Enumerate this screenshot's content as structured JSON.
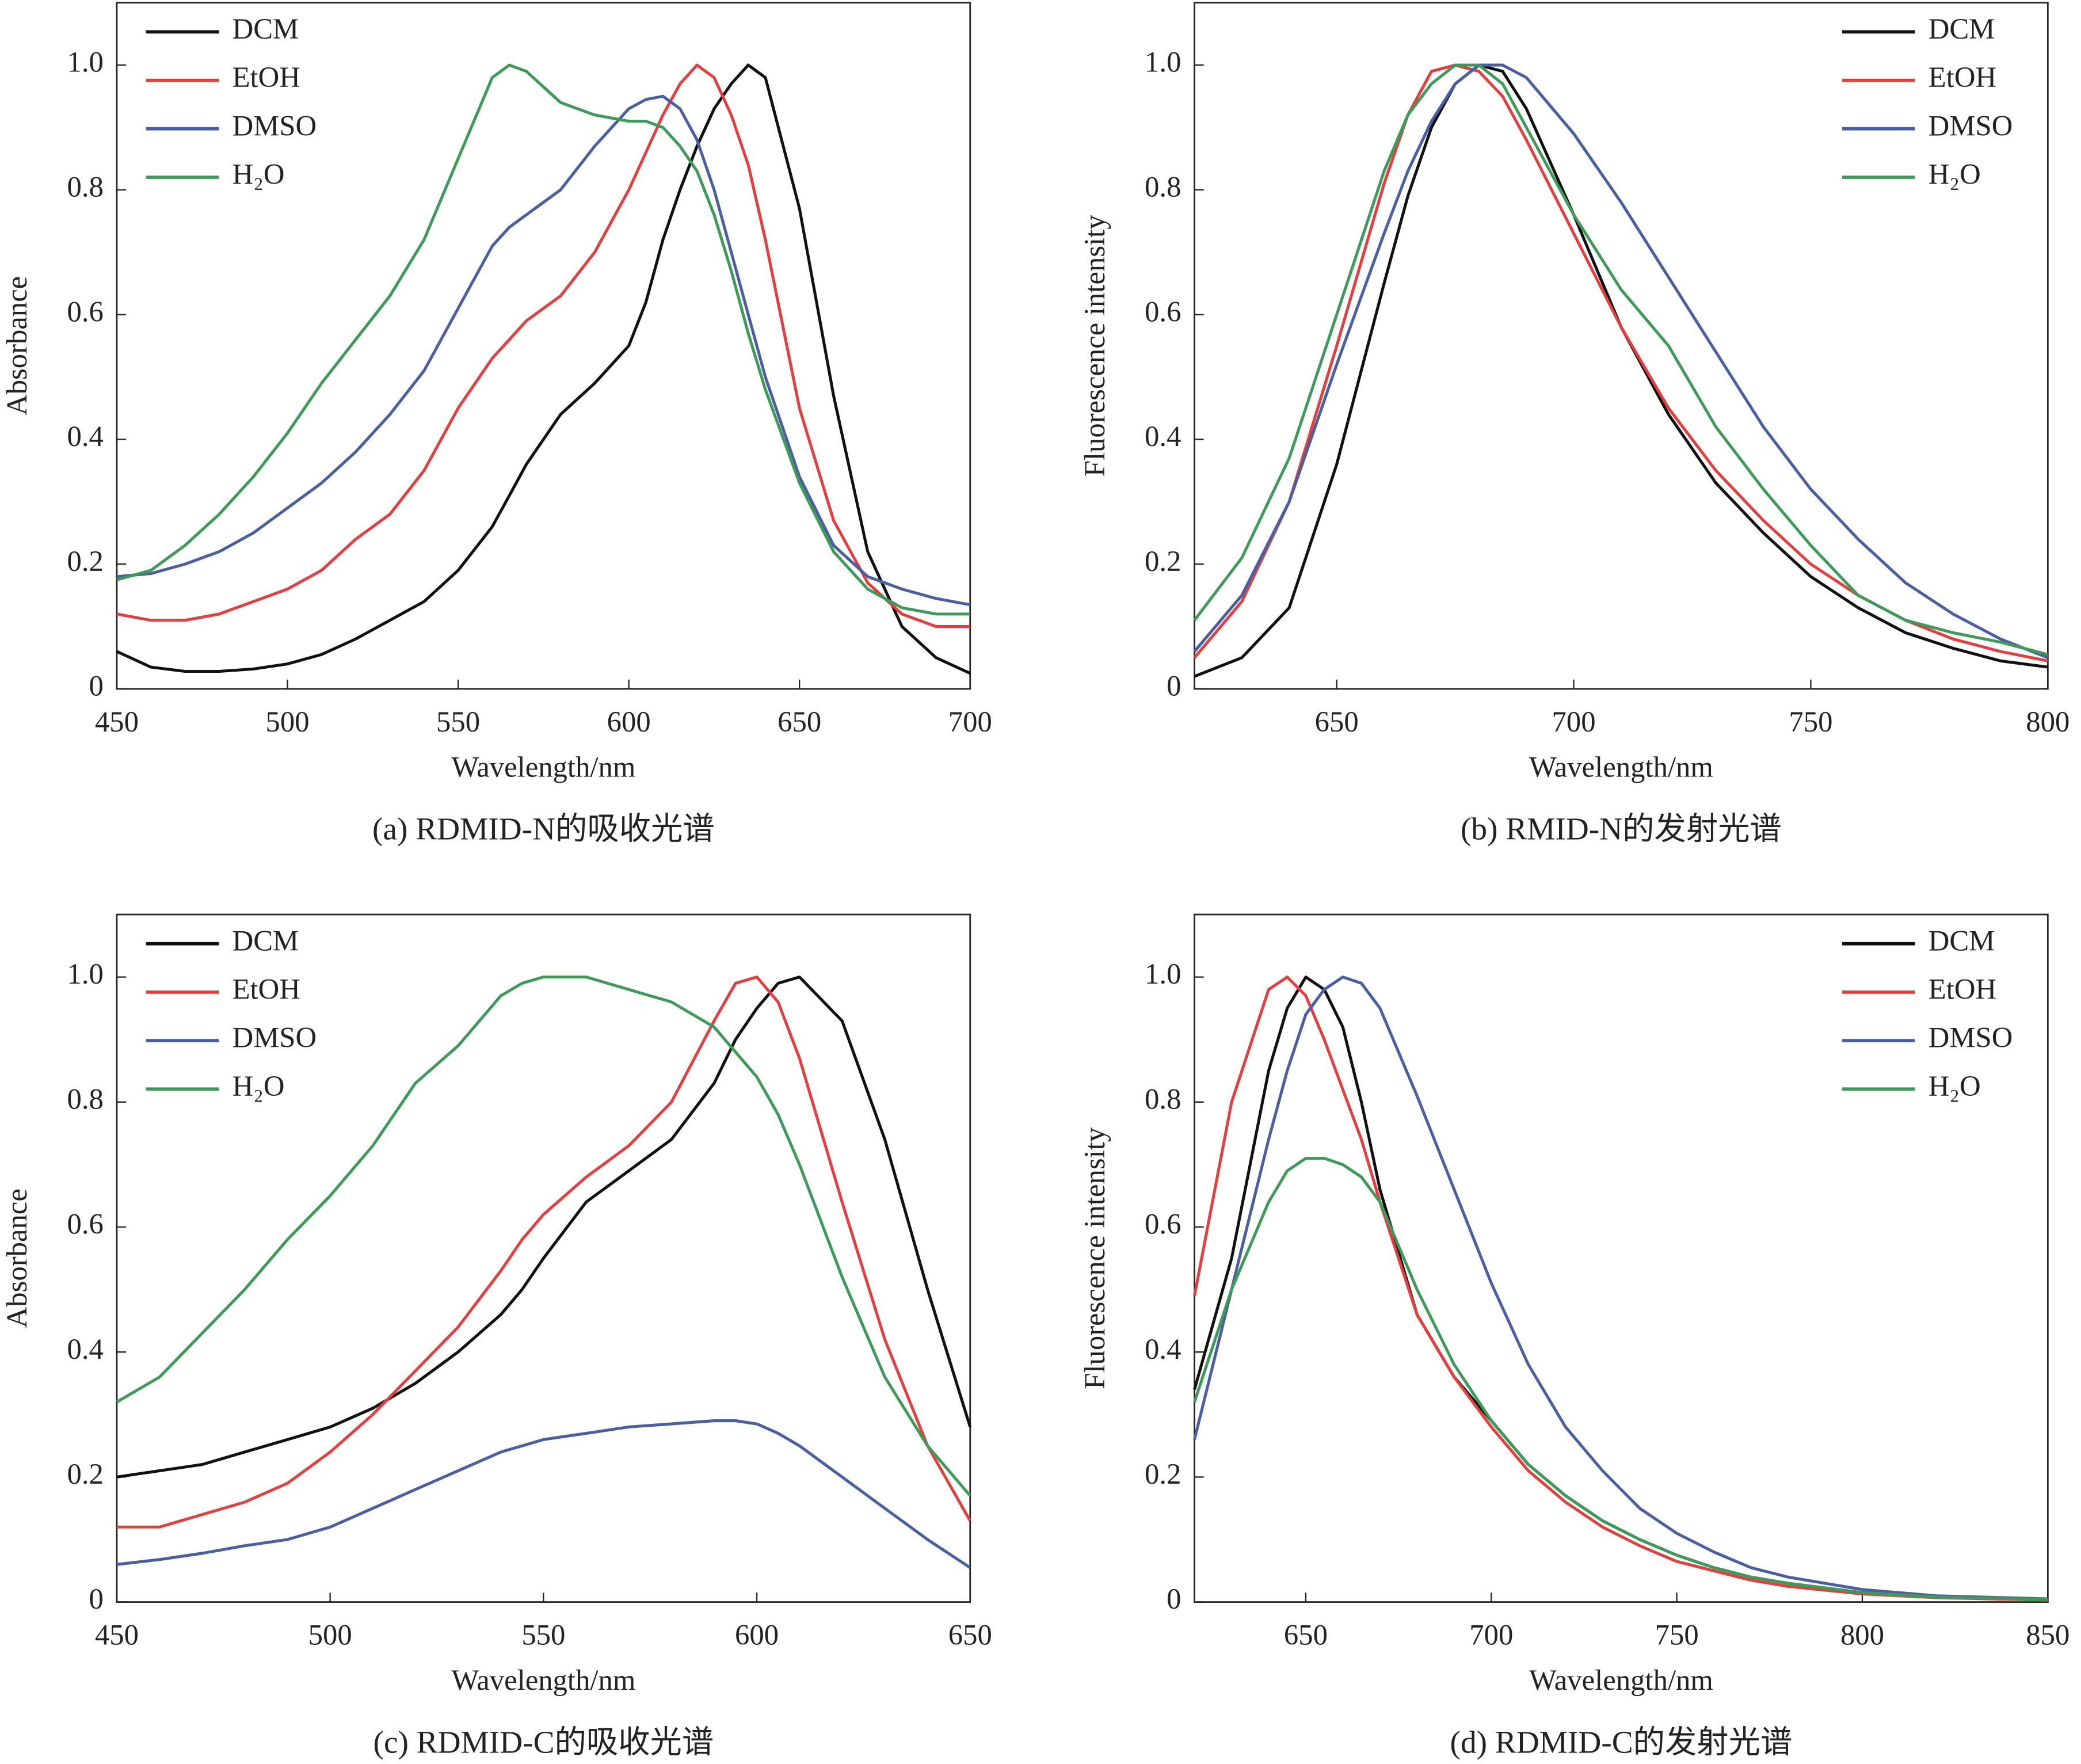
{
  "chart_data": [
    {
      "type": "line",
      "caption": "(a) RDMID-N的吸收光谱",
      "xlabel": "Wavelength/nm",
      "ylabel": "Absorbance",
      "legend": "upper left",
      "xlim": [
        450,
        700
      ],
      "xticks": [
        450,
        500,
        550,
        600,
        650,
        700
      ],
      "ylim": [
        0,
        1.1
      ],
      "yticks": [
        0,
        0.2,
        0.4,
        0.6,
        0.8,
        {
          "value": 1,
          "label": "1.0"
        }
      ],
      "x": [
        450,
        460,
        470,
        480,
        490,
        500,
        510,
        520,
        530,
        540,
        550,
        560,
        565,
        570,
        580,
        590,
        600,
        605,
        610,
        615,
        620,
        625,
        630,
        635,
        640,
        650,
        660,
        670,
        680,
        690,
        700
      ],
      "series": [
        {
          "name": "DCM",
          "color": "#111111",
          "values": [
            0.06,
            0.035,
            0.028,
            0.028,
            0.032,
            0.04,
            0.055,
            0.08,
            0.11,
            0.14,
            0.19,
            0.26,
            0.31,
            0.36,
            0.44,
            0.49,
            0.55,
            0.62,
            0.72,
            0.8,
            0.87,
            0.93,
            0.97,
            1.0,
            0.98,
            0.77,
            0.47,
            0.22,
            0.1,
            0.05,
            0.025
          ]
        },
        {
          "name": "EtOH",
          "color": "#e04040",
          "values": [
            0.12,
            0.11,
            0.11,
            0.12,
            0.14,
            0.16,
            0.19,
            0.24,
            0.28,
            0.35,
            0.45,
            0.53,
            0.56,
            0.59,
            0.63,
            0.7,
            0.8,
            0.86,
            0.92,
            0.97,
            1.0,
            0.98,
            0.92,
            0.84,
            0.72,
            0.45,
            0.27,
            0.17,
            0.12,
            0.1,
            0.1
          ]
        },
        {
          "name": "DMSO",
          "color": "#4a5fa0",
          "values": [
            0.18,
            0.185,
            0.2,
            0.22,
            0.25,
            0.29,
            0.33,
            0.38,
            0.44,
            0.51,
            0.61,
            0.71,
            0.74,
            0.76,
            0.8,
            0.87,
            0.93,
            0.945,
            0.95,
            0.93,
            0.88,
            0.8,
            0.7,
            0.6,
            0.5,
            0.34,
            0.23,
            0.18,
            0.16,
            0.145,
            0.135
          ]
        },
        {
          "name": "H₂O",
          "color": "#3f9a5a",
          "values": [
            0.175,
            0.19,
            0.23,
            0.28,
            0.34,
            0.41,
            0.49,
            0.56,
            0.63,
            0.72,
            0.85,
            0.98,
            1.0,
            0.99,
            0.94,
            0.92,
            0.91,
            0.91,
            0.9,
            0.87,
            0.83,
            0.76,
            0.67,
            0.57,
            0.48,
            0.33,
            0.22,
            0.16,
            0.13,
            0.12,
            0.12
          ]
        }
      ]
    },
    {
      "type": "line",
      "caption": "(b) RMID-N的发射光谱",
      "xlabel": "Wavelength/nm",
      "ylabel": "Fluorescence intensity",
      "legend": "upper right",
      "xlim": [
        620,
        800
      ],
      "xticks": [
        650,
        700,
        750,
        800
      ],
      "ylim": [
        0,
        1.1
      ],
      "yticks": [
        0,
        0.2,
        0.4,
        0.6,
        0.8,
        {
          "value": 1,
          "label": "1.0"
        }
      ],
      "x": [
        620,
        630,
        640,
        650,
        660,
        665,
        670,
        675,
        680,
        685,
        690,
        700,
        710,
        720,
        730,
        740,
        750,
        760,
        770,
        780,
        790,
        800
      ],
      "series": [
        {
          "name": "DCM",
          "color": "#111111",
          "values": [
            0.02,
            0.05,
            0.13,
            0.36,
            0.65,
            0.79,
            0.9,
            0.97,
            1.0,
            0.99,
            0.93,
            0.76,
            0.58,
            0.44,
            0.33,
            0.25,
            0.18,
            0.13,
            0.09,
            0.065,
            0.045,
            0.035
          ]
        },
        {
          "name": "EtOH",
          "color": "#e04040",
          "values": [
            0.05,
            0.14,
            0.3,
            0.55,
            0.81,
            0.92,
            0.99,
            1.0,
            0.99,
            0.95,
            0.88,
            0.73,
            0.58,
            0.45,
            0.35,
            0.27,
            0.2,
            0.15,
            0.11,
            0.08,
            0.06,
            0.045
          ]
        },
        {
          "name": "DMSO",
          "color": "#4a5fa0",
          "values": [
            0.06,
            0.15,
            0.3,
            0.52,
            0.73,
            0.83,
            0.91,
            0.97,
            1.0,
            1.0,
            0.98,
            0.89,
            0.78,
            0.66,
            0.54,
            0.42,
            0.32,
            0.24,
            0.17,
            0.12,
            0.08,
            0.05
          ]
        },
        {
          "name": "H₂O",
          "color": "#3f9a5a",
          "values": [
            0.11,
            0.21,
            0.37,
            0.6,
            0.83,
            0.92,
            0.97,
            1.0,
            1.0,
            0.97,
            0.9,
            0.76,
            0.64,
            0.55,
            0.42,
            0.32,
            0.23,
            0.15,
            0.11,
            0.09,
            0.075,
            0.055
          ]
        }
      ]
    },
    {
      "type": "line",
      "caption": "(c) RDMID-C的吸收光谱",
      "xlabel": "Wavelength/nm",
      "ylabel": "Absorbance",
      "legend": "upper left",
      "xlim": [
        450,
        650
      ],
      "xticks": [
        450,
        500,
        550,
        600,
        650
      ],
      "ylim": [
        0,
        1.1
      ],
      "yticks": [
        0,
        0.2,
        0.4,
        0.6,
        0.8,
        {
          "value": 1,
          "label": "1.0"
        }
      ],
      "x": [
        450,
        460,
        470,
        480,
        490,
        500,
        510,
        520,
        530,
        540,
        545,
        550,
        560,
        570,
        580,
        590,
        595,
        600,
        605,
        610,
        620,
        630,
        640,
        650
      ],
      "series": [
        {
          "name": "DCM",
          "color": "#111111",
          "values": [
            0.2,
            0.21,
            0.22,
            0.24,
            0.26,
            0.28,
            0.31,
            0.35,
            0.4,
            0.46,
            0.5,
            0.55,
            0.64,
            0.69,
            0.74,
            0.83,
            0.9,
            0.95,
            0.99,
            1.0,
            0.93,
            0.74,
            0.5,
            0.28
          ]
        },
        {
          "name": "EtOH",
          "color": "#e04040",
          "values": [
            0.12,
            0.12,
            0.14,
            0.16,
            0.19,
            0.24,
            0.3,
            0.37,
            0.44,
            0.53,
            0.58,
            0.62,
            0.68,
            0.73,
            0.8,
            0.93,
            0.99,
            1.0,
            0.96,
            0.87,
            0.64,
            0.42,
            0.25,
            0.13
          ]
        },
        {
          "name": "DMSO",
          "color": "#4a5fa0",
          "values": [
            0.06,
            0.068,
            0.078,
            0.09,
            0.1,
            0.12,
            0.15,
            0.18,
            0.21,
            0.24,
            0.25,
            0.26,
            0.27,
            0.28,
            0.285,
            0.29,
            0.29,
            0.285,
            0.27,
            0.25,
            0.2,
            0.15,
            0.1,
            0.055
          ]
        },
        {
          "name": "H₂O",
          "color": "#3f9a5a",
          "values": [
            0.32,
            0.36,
            0.43,
            0.5,
            0.58,
            0.65,
            0.73,
            0.83,
            0.89,
            0.97,
            0.99,
            1.0,
            1.0,
            0.98,
            0.96,
            0.92,
            0.88,
            0.84,
            0.78,
            0.7,
            0.52,
            0.36,
            0.25,
            0.17
          ]
        }
      ]
    },
    {
      "type": "line",
      "caption": "(d) RDMID-C的发射光谱",
      "xlabel": "Wavelength/nm",
      "ylabel": "Fluorescence intensity",
      "legend": "upper right",
      "xlim": [
        620,
        850
      ],
      "xticks": [
        650,
        700,
        750,
        800,
        850
      ],
      "ylim": [
        0,
        1.1
      ],
      "yticks": [
        0,
        0.2,
        0.4,
        0.6,
        0.8,
        {
          "value": 1,
          "label": "1.0"
        }
      ],
      "x": [
        620,
        630,
        640,
        645,
        650,
        655,
        660,
        665,
        670,
        680,
        690,
        700,
        710,
        720,
        730,
        740,
        750,
        760,
        770,
        780,
        800,
        820,
        850
      ],
      "series": [
        {
          "name": "DCM",
          "color": "#111111",
          "values": [
            0.34,
            0.55,
            0.85,
            0.95,
            1.0,
            0.98,
            0.92,
            0.8,
            0.66,
            0.46,
            0.36,
            0.29,
            0.22,
            0.17,
            0.13,
            0.1,
            0.075,
            0.055,
            0.04,
            0.03,
            0.015,
            0.008,
            0.004
          ]
        },
        {
          "name": "EtOH",
          "color": "#e04040",
          "values": [
            0.49,
            0.8,
            0.98,
            1.0,
            0.97,
            0.9,
            0.82,
            0.74,
            0.64,
            0.46,
            0.36,
            0.28,
            0.21,
            0.16,
            0.12,
            0.09,
            0.065,
            0.05,
            0.035,
            0.025,
            0.013,
            0.007,
            0.003
          ]
        },
        {
          "name": "DMSO",
          "color": "#4a5fa0",
          "values": [
            0.26,
            0.5,
            0.74,
            0.85,
            0.94,
            0.98,
            1.0,
            0.99,
            0.95,
            0.81,
            0.66,
            0.51,
            0.38,
            0.28,
            0.21,
            0.15,
            0.11,
            0.08,
            0.055,
            0.04,
            0.02,
            0.01,
            0.005
          ]
        },
        {
          "name": "H₂O",
          "color": "#3f9a5a",
          "values": [
            0.32,
            0.5,
            0.64,
            0.69,
            0.71,
            0.71,
            0.7,
            0.68,
            0.64,
            0.5,
            0.38,
            0.29,
            0.22,
            0.17,
            0.13,
            0.1,
            0.075,
            0.055,
            0.04,
            0.03,
            0.015,
            0.008,
            0.004
          ]
        }
      ]
    }
  ]
}
